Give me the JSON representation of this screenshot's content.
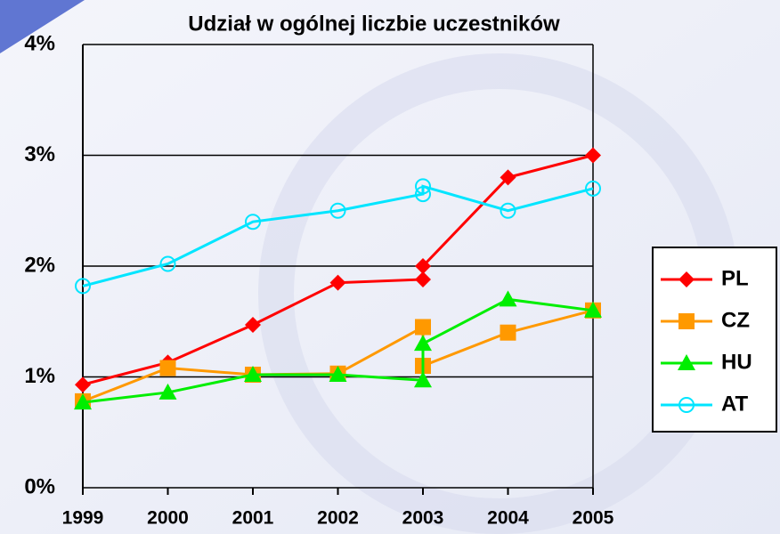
{
  "chart_data": {
    "type": "line",
    "title": "Udział w ogólnej liczbie uczestników",
    "x": [
      1999,
      2000,
      2001,
      2002,
      2003,
      2003,
      2004,
      2005
    ],
    "xlim": [
      1999,
      2005
    ],
    "xticks": [
      1999,
      2000,
      2001,
      2002,
      2003,
      2004,
      2005
    ],
    "ylim": [
      0,
      4
    ],
    "yticks": [
      {
        "value": 0,
        "label": "0%"
      },
      {
        "value": 1,
        "label": "1%"
      },
      {
        "value": 2,
        "label": "2%"
      },
      {
        "value": 3,
        "label": "3%"
      },
      {
        "value": 4,
        "label": "4%"
      }
    ],
    "grid": true,
    "legend": "right",
    "series": [
      {
        "name": "PL",
        "color": "#ff0000",
        "marker": "diamond",
        "values": [
          0.93,
          1.13,
          1.47,
          1.85,
          1.88,
          2.0,
          2.8,
          3.0
        ]
      },
      {
        "name": "CZ",
        "color": "#ff9900",
        "marker": "square",
        "values": [
          0.78,
          1.08,
          1.02,
          1.03,
          1.45,
          1.1,
          1.4,
          1.6
        ]
      },
      {
        "name": "HU",
        "color": "#00ee00",
        "marker": "triangle",
        "values": [
          0.77,
          0.86,
          1.02,
          1.02,
          0.97,
          1.3,
          1.7,
          1.6
        ]
      },
      {
        "name": "AT",
        "color": "#00e5ff",
        "marker": "circle",
        "values": [
          1.82,
          2.02,
          2.4,
          2.5,
          2.65,
          2.72,
          2.5,
          2.7
        ]
      }
    ]
  }
}
